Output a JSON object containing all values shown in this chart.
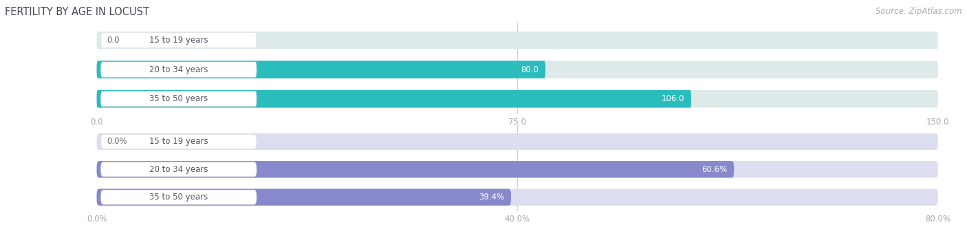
{
  "title": "FERTILITY BY AGE IN LOCUST",
  "source": "Source: ZipAtlas.com",
  "top_bars": {
    "categories": [
      "15 to 19 years",
      "20 to 34 years",
      "35 to 50 years"
    ],
    "values": [
      0.0,
      80.0,
      106.0
    ],
    "xlim": [
      0.0,
      150.0
    ],
    "xticks": [
      0.0,
      75.0,
      150.0
    ],
    "xtick_labels": [
      "0.0",
      "75.0",
      "150.0"
    ],
    "bar_color": "#2bbcbc",
    "bar_bg_color": "#deeaea",
    "label_color_inside": "#ffffff",
    "label_color_outside": "#666677"
  },
  "bottom_bars": {
    "categories": [
      "15 to 19 years",
      "20 to 34 years",
      "35 to 50 years"
    ],
    "values": [
      0.0,
      60.6,
      39.4
    ],
    "xlim": [
      0.0,
      80.0
    ],
    "xticks": [
      0.0,
      40.0,
      80.0
    ],
    "xtick_labels": [
      "0.0%",
      "40.0%",
      "80.0%"
    ],
    "bar_color": "#8888cc",
    "bar_bg_color": "#ddddf0",
    "label_color_inside": "#ffffff",
    "label_color_outside": "#666677"
  },
  "title_fontsize": 10.5,
  "source_fontsize": 8.5,
  "label_fontsize": 8.5,
  "tick_fontsize": 8.5,
  "category_fontsize": 8.5,
  "title_color": "#444455",
  "tick_color": "#aaaaaa",
  "grid_color": "#cccccc",
  "background_color": "#ffffff",
  "pill_color": "#ffffff",
  "pill_border_color": "#dddddd"
}
